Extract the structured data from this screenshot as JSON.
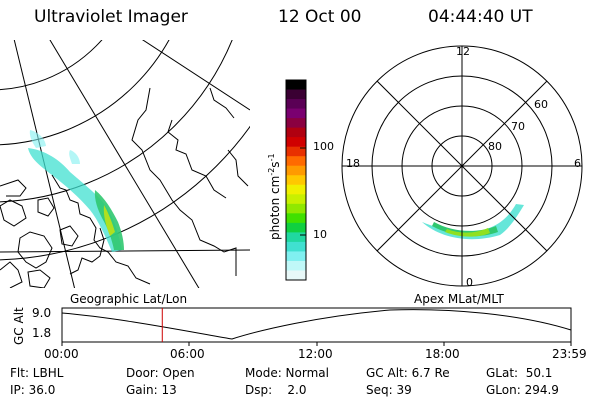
{
  "header": {
    "instrument": "Ultraviolet Imager",
    "date": "12 Oct 00",
    "time": "04:44:40 UT"
  },
  "colorbar": {
    "unit_label": "photon cm",
    "unit_sup1": "-2",
    "unit_mid": "s",
    "unit_sup2": "-1",
    "tick_labels": [
      "100",
      "10"
    ],
    "colors": [
      "#000000",
      "#3a0033",
      "#5a0055",
      "#7a0070",
      "#8a0040",
      "#b00010",
      "#d00000",
      "#e83000",
      "#ff6a00",
      "#ff9a00",
      "#ffc800",
      "#f0f000",
      "#c8f000",
      "#90e800",
      "#40e000",
      "#10d040",
      "#20d8a0",
      "#40e0d0",
      "#80f0f0",
      "#c0f8f8",
      "#e8f8f8"
    ]
  },
  "left_panel": {
    "caption": "Geographic Lat/Lon"
  },
  "right_panel": {
    "caption": "Apex MLat/MLT",
    "mlt_labels": [
      "12",
      "18",
      "6",
      "0"
    ],
    "mlat_labels": [
      "60",
      "70",
      "80"
    ]
  },
  "timeline": {
    "ylabel": "GC Alt",
    "y_ticks": [
      "9.0",
      "1.8"
    ],
    "x_ticks": [
      "00:00",
      "06:00",
      "12:00",
      "18:00",
      "23:59"
    ],
    "current_time_fraction": 0.197,
    "accent_color": "#cc0000"
  },
  "status": {
    "flt": "Flt: LBHL",
    "ip": "IP: 36.0",
    "door": "Door: Open",
    "gain": "Gain: 13",
    "mode": "Mode: Normal",
    "dsp": "Dsp:    2.0",
    "gcalt": "GC Alt: 6.7 Re",
    "seq": "Seq: 39",
    "glat": "GLat:  50.1",
    "glon": "GLon: 294.9"
  }
}
